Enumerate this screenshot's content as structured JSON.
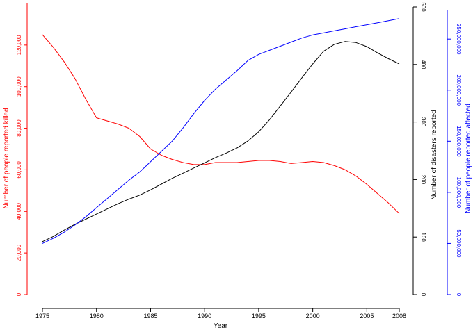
{
  "chart_data": {
    "type": "line",
    "xlabel": "Year",
    "x_ticks": [
      1975,
      1980,
      1985,
      1990,
      1995,
      2000,
      2005,
      2008
    ],
    "xlim": [
      1975,
      2008
    ],
    "axes": [
      {
        "id": "killed",
        "side": "left",
        "label": "Number of people reported killed",
        "color": "#ff0000",
        "ylim": [
          0,
          140000
        ],
        "ticks": [
          0,
          20000,
          40000,
          60000,
          80000,
          100000,
          120000
        ],
        "tick_labels": [
          "0",
          "20,000",
          "40,000",
          "60,000",
          "80,000",
          "100,000",
          "120,000"
        ]
      },
      {
        "id": "disasters",
        "side": "right",
        "label": "Number of disasters reported",
        "color": "#000000",
        "ylim": [
          0,
          500
        ],
        "ticks": [
          0,
          100,
          200,
          300,
          400,
          500
        ],
        "tick_labels": [
          "0",
          "100",
          "200",
          "300",
          "400",
          "500"
        ]
      },
      {
        "id": "affected",
        "side": "right-outer",
        "label": "Number of people reported affected",
        "color": "#0000ff",
        "ylim": [
          0,
          278000000
        ],
        "ticks": [
          0,
          50000000,
          100000000,
          150000000,
          200000000,
          250000000
        ],
        "tick_labels": [
          "0",
          "50,000,000",
          "100,000,000",
          "150,000,000",
          "200,000,000",
          "250,000,000"
        ]
      }
    ],
    "x": [
      1975,
      1976,
      1977,
      1978,
      1979,
      1980,
      1981,
      1982,
      1983,
      1984,
      1985,
      1986,
      1987,
      1988,
      1989,
      1990,
      1991,
      1992,
      1993,
      1994,
      1995,
      1996,
      1997,
      1998,
      1999,
      2000,
      2001,
      2002,
      2003,
      2004,
      2005,
      2006,
      2007,
      2008
    ],
    "series": [
      {
        "axis": "killed",
        "color": "#ff0000",
        "values": [
          125000,
          119000,
          112000,
          104000,
          94000,
          85000,
          83500,
          82000,
          80000,
          76000,
          70000,
          67000,
          65000,
          63500,
          62500,
          62500,
          63500,
          63500,
          63500,
          64000,
          64500,
          64500,
          64000,
          63000,
          63500,
          64000,
          63500,
          62000,
          60000,
          57000,
          53000,
          48500,
          44000,
          39000
        ]
      },
      {
        "axis": "disasters",
        "color": "#000000",
        "values": [
          92,
          101,
          112,
          122,
          131,
          140,
          149,
          158,
          166,
          173,
          182,
          192,
          202,
          211,
          220,
          229,
          238,
          246,
          255,
          267,
          283,
          304,
          328,
          352,
          377,
          401,
          423,
          435,
          440,
          438,
          431,
          420,
          410,
          401
        ]
      },
      {
        "axis": "affected",
        "color": "#0000ff",
        "values": [
          50000000,
          55000000,
          61000000,
          68000000,
          76000000,
          85000000,
          94000000,
          103000000,
          112000000,
          120000000,
          130000000,
          140000000,
          150000000,
          163000000,
          177000000,
          190000000,
          201000000,
          210000000,
          219000000,
          229000000,
          235000000,
          239000000,
          243000000,
          247000000,
          251000000,
          254000000,
          256000000,
          258000000,
          260000000,
          262000000,
          264000000,
          266000000,
          268000000,
          270000000
        ]
      }
    ]
  }
}
